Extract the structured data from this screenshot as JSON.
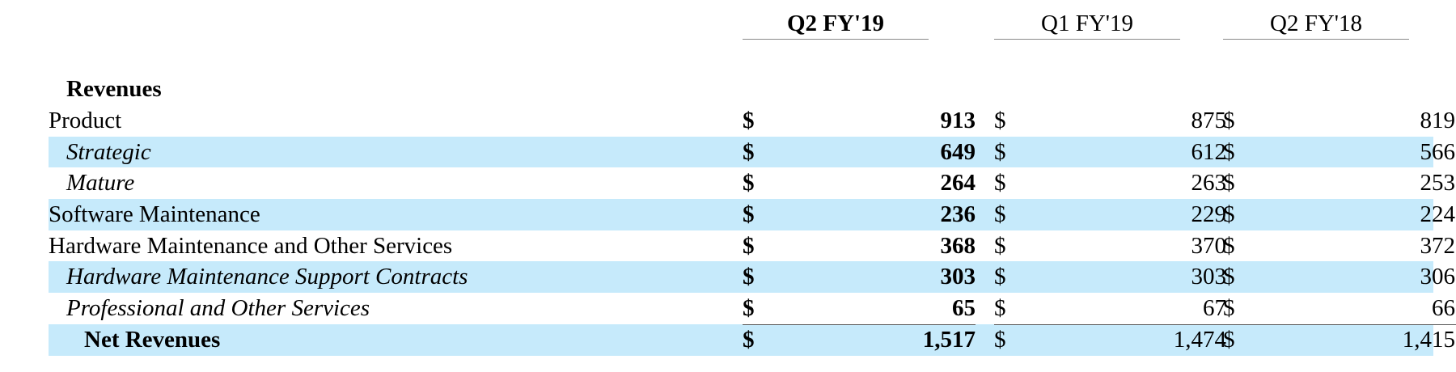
{
  "columns": {
    "col1": "Q2 FY'19",
    "col2": "Q1 FY'19",
    "col3": "Q2 FY'18"
  },
  "section_title": "Revenues",
  "currency_symbol": "$",
  "rows": [
    {
      "label": "Product",
      "values": [
        "913",
        "875",
        "819"
      ]
    },
    {
      "label": "Strategic",
      "values": [
        "649",
        "612",
        "566"
      ]
    },
    {
      "label": "Mature",
      "values": [
        "264",
        "263",
        "253"
      ]
    },
    {
      "label": "Software Maintenance",
      "values": [
        "236",
        "229",
        "224"
      ]
    },
    {
      "label": "Hardware Maintenance and Other Services",
      "values": [
        "368",
        "370",
        "372"
      ]
    },
    {
      "label": "Hardware Maintenance Support Contracts",
      "values": [
        "303",
        "303",
        "306"
      ]
    },
    {
      "label": "Professional and Other Services",
      "values": [
        "65",
        "67",
        "66"
      ]
    },
    {
      "label": "Net Revenues",
      "values": [
        "1,517",
        "1,474",
        "1,415"
      ]
    }
  ],
  "colors": {
    "row_shade": "#c6eafb",
    "text": "#000000",
    "rule": "#8a8a8a"
  }
}
